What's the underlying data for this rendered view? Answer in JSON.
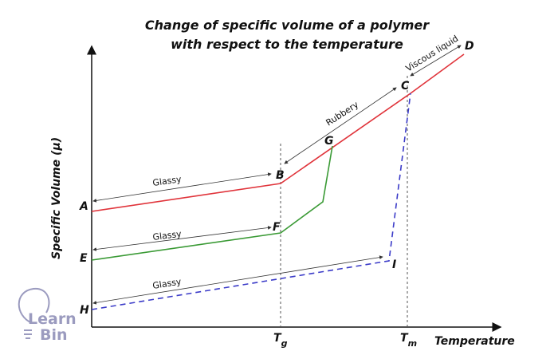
{
  "title_line1": "Change of specific volume of a polymer",
  "title_line2": "with respect to the temperature",
  "y_axis_label": "Specific Volume (μ)",
  "x_axis_label": "Temperature",
  "tick_tg": "T",
  "tick_tg_sub": "g",
  "tick_tm": "T",
  "tick_tm_sub": "m",
  "points": {
    "A": "A",
    "B": "B",
    "C": "C",
    "D": "D",
    "E": "E",
    "F": "F",
    "G": "G",
    "H": "H",
    "I": "I"
  },
  "regions": {
    "glassy1": "Glassy",
    "glassy2": "Glassy",
    "glassy3": "Glassy",
    "rubbery": "Rubbery",
    "viscous": "Viscous liquid"
  },
  "logo": {
    "line1": "Learn",
    "line2": "Bin"
  },
  "colors": {
    "curve_ABCD": "#e0333a",
    "curve_EFG": "#3a9a35",
    "curve_HI": "#3b3bc8",
    "logo": "#9b9bbf"
  }
}
